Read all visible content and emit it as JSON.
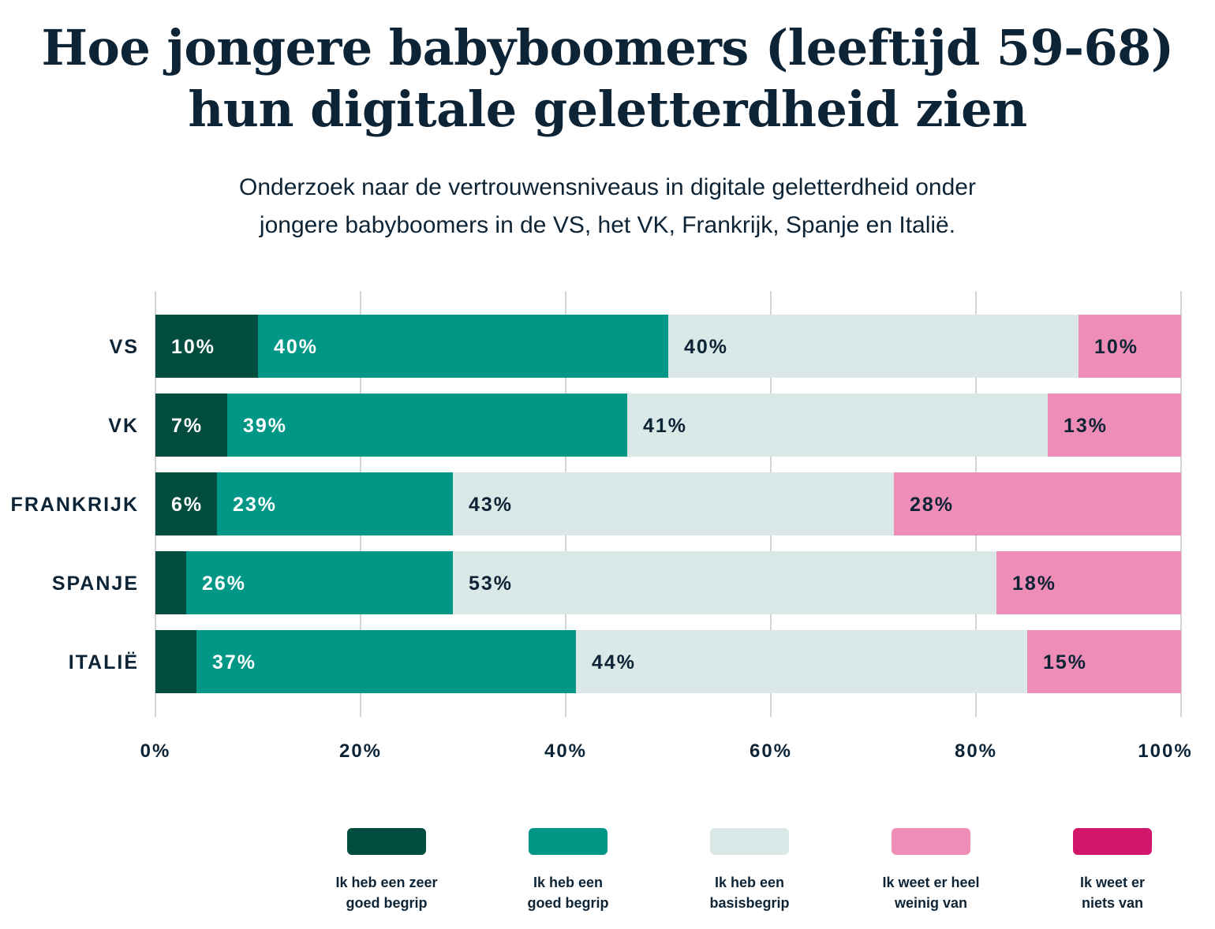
{
  "title_line1": "Hoe jongere babyboomers (leeftijd 59-68)",
  "title_line2": "hun digitale geletterdheid zien",
  "subtitle_line1": "Onderzoek naar de vertrouwensniveaus in digitale geletterdheid onder",
  "subtitle_line2": "jongere babyboomers in de VS, het VK, Frankrijk, Spanje en Italië.",
  "chart_data": {
    "type": "bar",
    "orientation": "horizontal",
    "stacked": true,
    "categories": [
      "VS",
      "VK",
      "FRANKRIJK",
      "SPANJE",
      "ITALIË"
    ],
    "xlim": [
      0,
      100
    ],
    "xticks": [
      "0%",
      "20%",
      "40%",
      "60%",
      "80%",
      "100%"
    ],
    "grid": true,
    "legend_placement": "bottom",
    "series": [
      {
        "name": "Ik heb een zeer goed begrip",
        "color": "#024d3f",
        "label_color": "#ffffff",
        "values": [
          10,
          7,
          6,
          3,
          4
        ],
        "labels": [
          "10%",
          "7%",
          "6%",
          null,
          null
        ]
      },
      {
        "name": "Ik heb een goed begrip",
        "color": "#009787",
        "label_color": "#ffffff",
        "values": [
          40,
          39,
          23,
          26,
          37
        ],
        "labels": [
          "40%",
          "39%",
          "23%",
          "26%",
          "37%"
        ]
      },
      {
        "name": "Ik heb een basisbegrip",
        "color": "#dae8e7",
        "label_color": "#0d2436",
        "values": [
          40,
          41,
          43,
          53,
          44
        ],
        "labels": [
          "40%",
          "41%",
          "43%",
          "53%",
          "44%"
        ]
      },
      {
        "name": "Ik weet er heel weinig van",
        "color": "#ee8db7",
        "label_color": "#0d2436",
        "values": [
          10,
          13,
          28,
          18,
          15
        ],
        "labels": [
          "10%",
          "13%",
          "28%",
          "18%",
          "15%"
        ]
      },
      {
        "name": "Ik weet er niets van",
        "color": "#d11769",
        "label_color": "#ffffff",
        "values": [
          0,
          0,
          0,
          0,
          0
        ],
        "labels": [
          null,
          null,
          null,
          null,
          null
        ]
      }
    ]
  },
  "legend": [
    {
      "line1": "Ik heb een zeer",
      "line2": "goed begrip"
    },
    {
      "line1": "Ik heb een",
      "line2": "goed begrip"
    },
    {
      "line1": "Ik heb een",
      "line2": "basisbegrip"
    },
    {
      "line1": "Ik weet er heel",
      "line2": "weinig van"
    },
    {
      "line1": "Ik weet er",
      "line2": "niets van"
    }
  ]
}
